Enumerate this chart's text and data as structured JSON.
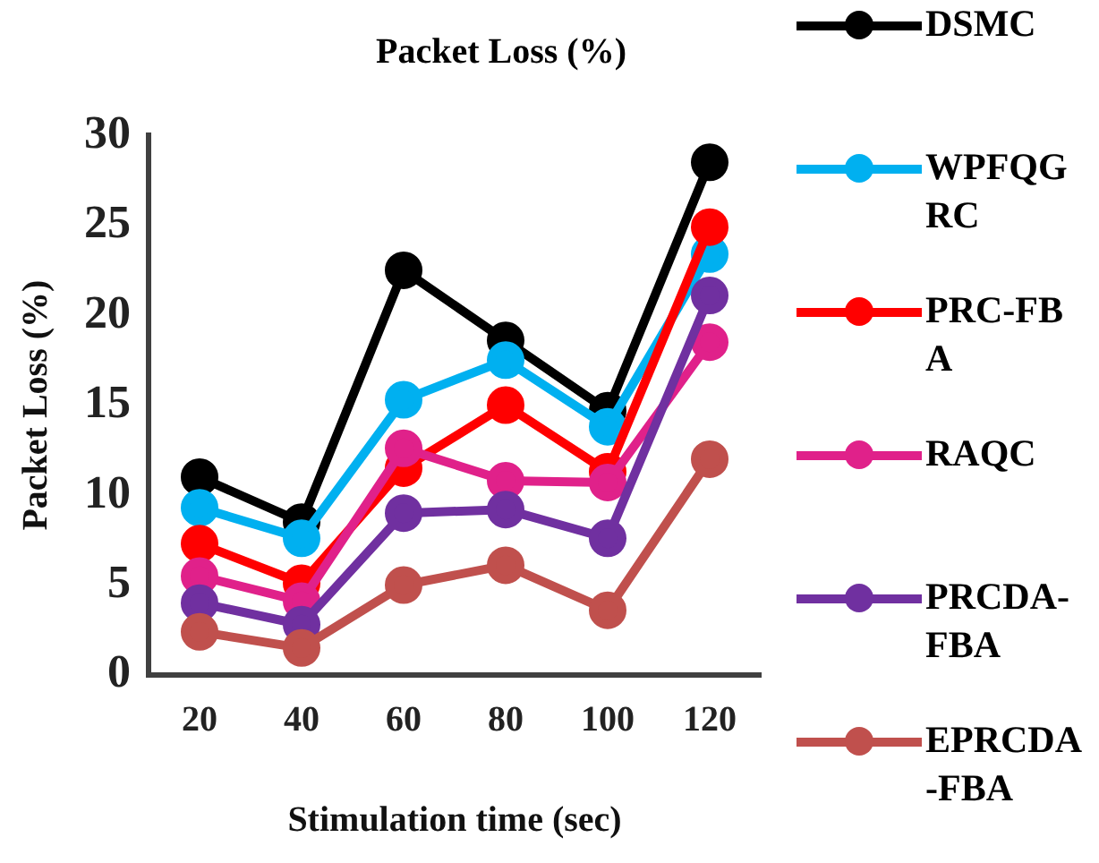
{
  "chart_data": {
    "type": "line",
    "title": "Packet Loss (%)",
    "xlabel": "Stimulation time (sec)",
    "ylabel": "Packet Loss (%)",
    "categories": [
      "20",
      "40",
      "60",
      "80",
      "100",
      "120"
    ],
    "series": [
      {
        "name": "DSMC",
        "color": "#000000",
        "values": [
          11.0,
          8.5,
          22.5,
          18.6,
          14.7,
          28.5
        ]
      },
      {
        "name": "WPFQGRC",
        "color": "#00b0f0",
        "values": [
          9.3,
          7.6,
          15.3,
          17.5,
          13.8,
          23.4
        ]
      },
      {
        "name": "PRC-FBA",
        "color": "#ff0000",
        "values": [
          7.3,
          5.1,
          11.5,
          15.0,
          11.3,
          24.9
        ]
      },
      {
        "name": "RAQC",
        "color": "#e0218a",
        "values": [
          5.5,
          4.1,
          12.6,
          10.8,
          10.7,
          18.5
        ]
      },
      {
        "name": "PRCDA-FBA",
        "color": "#7030a0",
        "values": [
          4.0,
          2.8,
          9.0,
          9.2,
          7.6,
          21.1
        ]
      },
      {
        "name": "EPRCDA-FBA",
        "color": "#c0504d",
        "values": [
          2.4,
          1.5,
          5.0,
          6.1,
          3.6,
          12.0
        ]
      }
    ],
    "ylim": [
      0,
      30
    ],
    "yticks": [
      0,
      5,
      10,
      15,
      20,
      25,
      30
    ],
    "grid": false,
    "legend": "right",
    "marker": "circle",
    "line_style": "solid"
  }
}
